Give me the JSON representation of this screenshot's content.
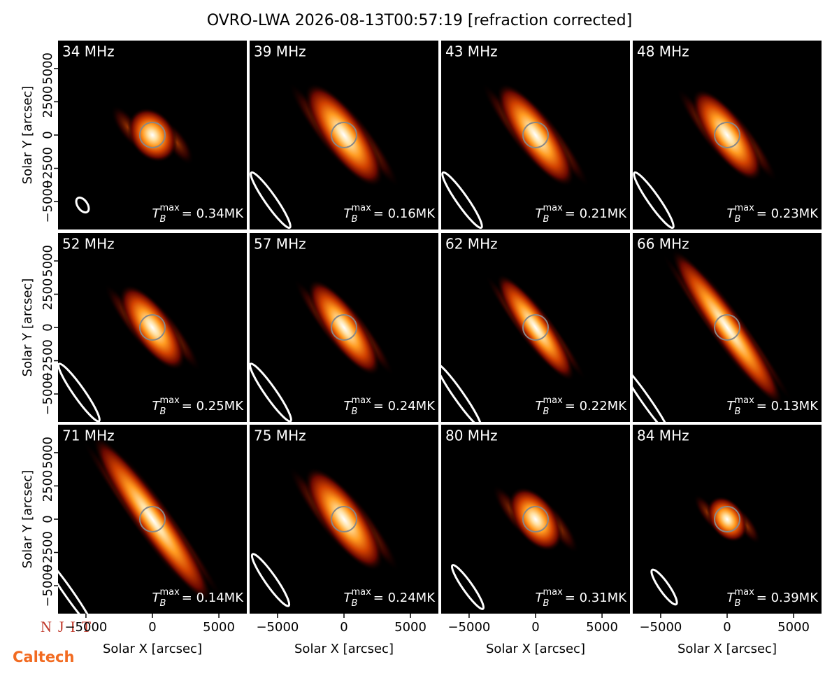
{
  "chart_data": {
    "type": "image-grid",
    "title": "OVRO-LWA 2026-08-13T00:57:19 [refraction corrected]",
    "xlabel": "Solar X [arcsec]",
    "ylabel": "Solar Y [arcsec]",
    "xlim": [
      -7100,
      7100
    ],
    "ylim": [
      -7100,
      7100
    ],
    "xticks": [
      {
        "value": -5000,
        "label": "−5000"
      },
      0,
      5000
    ],
    "yticks": [
      {
        "value": -5000,
        "label": "−5000"
      },
      {
        "value": -2500,
        "label": "−2500"
      },
      0,
      2500,
      5000
    ],
    "colormap": "gist_heat",
    "grid": false,
    "panels": [
      {
        "label": "34 MHz",
        "tmax": {
          "symbol": "T",
          "sub": "B",
          "sup": "max",
          "text": "= 0.34MK"
        }
      },
      {
        "label": "39 MHz",
        "tmax": {
          "symbol": "T",
          "sub": "B",
          "sup": "max",
          "text": "= 0.16MK"
        }
      },
      {
        "label": "43 MHz",
        "tmax": {
          "symbol": "T",
          "sub": "B",
          "sup": "max",
          "text": "= 0.21MK"
        }
      },
      {
        "label": "48 MHz",
        "tmax": {
          "symbol": "T",
          "sub": "B",
          "sup": "max",
          "text": "= 0.23MK"
        }
      },
      {
        "label": "52 MHz",
        "tmax": {
          "symbol": "T",
          "sub": "B",
          "sup": "max",
          "text": "= 0.25MK"
        }
      },
      {
        "label": "57 MHz",
        "tmax": {
          "symbol": "T",
          "sub": "B",
          "sup": "max",
          "text": "= 0.24MK"
        }
      },
      {
        "label": "62 MHz",
        "tmax": {
          "symbol": "T",
          "sub": "B",
          "sup": "max",
          "text": "= 0.22MK"
        }
      },
      {
        "label": "66 MHz",
        "tmax": {
          "symbol": "T",
          "sub": "B",
          "sup": "max",
          "text": "= 0.13MK"
        }
      },
      {
        "label": "71 MHz",
        "tmax": {
          "symbol": "T",
          "sub": "B",
          "sup": "max",
          "text": "= 0.14MK"
        }
      },
      {
        "label": "75 MHz",
        "tmax": {
          "symbol": "T",
          "sub": "B",
          "sup": "max",
          "text": "= 0.24MK"
        }
      },
      {
        "label": "80 MHz",
        "tmax": {
          "symbol": "T",
          "sub": "B",
          "sup": "max",
          "text": "= 0.31MK"
        }
      },
      {
        "label": "84 MHz",
        "tmax": {
          "symbol": "T",
          "sub": "B",
          "sup": "max",
          "text": "= 0.39MK"
        }
      }
    ]
  },
  "logos": [
    "NJIT",
    "Caltech"
  ]
}
